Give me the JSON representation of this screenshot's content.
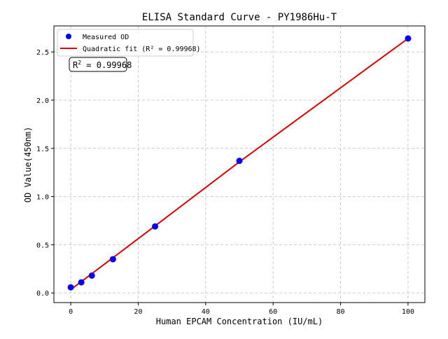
{
  "chart_data": {
    "type": "scatter",
    "title": "ELISA Standard Curve - PY1986Hu-T",
    "xlabel": "Human EPCAM Concentration (IU/mL)",
    "ylabel": "OD Value(450nm)",
    "xlim": [
      -5,
      105
    ],
    "ylim": [
      -0.1,
      2.77
    ],
    "xticks": [
      0,
      20,
      40,
      60,
      80,
      100
    ],
    "yticks": [
      0.0,
      0.5,
      1.0,
      1.5,
      2.0,
      2.5
    ],
    "ytick_labels": [
      "0.0",
      "0.5",
      "1.0",
      "1.5",
      "2.0",
      "2.5"
    ],
    "grid": true,
    "legend_position": "top-left",
    "series": [
      {
        "name": "Measured OD",
        "kind": "points",
        "color": "#0000ff",
        "x": [
          0,
          3.125,
          6.25,
          12.5,
          25,
          50,
          100
        ],
        "y": [
          0.058,
          0.11,
          0.18,
          0.35,
          0.69,
          1.37,
          2.64
        ]
      },
      {
        "name": "Quadratic fit (R² = 0.99968)",
        "kind": "line",
        "color": "#dd0000",
        "x": [
          0,
          25,
          50,
          75,
          100
        ],
        "y": [
          0.035,
          0.695,
          1.36,
          2.0,
          2.64
        ]
      }
    ],
    "annotation": {
      "prefix": "R",
      "sup": "2",
      "text": " = 0.99968"
    }
  }
}
